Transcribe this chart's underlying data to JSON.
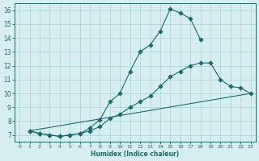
{
  "xlabel": "Humidex (Indice chaleur)",
  "ylabel": "",
  "bg_color": "#d6eef0",
  "line_color": "#1a6b6b",
  "grid_color": "#b0d8dc",
  "xlim": [
    -0.5,
    23.5
  ],
  "ylim": [
    6.5,
    16.5
  ],
  "xticks": [
    0,
    1,
    2,
    3,
    4,
    5,
    6,
    7,
    8,
    9,
    10,
    11,
    12,
    13,
    14,
    15,
    16,
    17,
    18,
    19,
    20,
    21,
    22,
    23
  ],
  "yticks": [
    7,
    8,
    9,
    10,
    11,
    12,
    13,
    14,
    15,
    16
  ],
  "series": [
    {
      "x": [
        1,
        2,
        3,
        4,
        5,
        6,
        7,
        8,
        9,
        10,
        11,
        12,
        13,
        14,
        15,
        16,
        17,
        18
      ],
      "y": [
        7.3,
        7.1,
        7.0,
        6.9,
        7.0,
        7.1,
        7.5,
        8.1,
        9.4,
        10.0,
        11.6,
        13.0,
        13.5,
        14.5,
        16.1,
        15.8,
        15.4,
        13.9
      ],
      "marker": "D",
      "markersize": 2.8
    },
    {
      "x": [
        1,
        2,
        3,
        4,
        5,
        6,
        7,
        8,
        9,
        10,
        11,
        12,
        13,
        14,
        15,
        16,
        17,
        18,
        19,
        20,
        21,
        22,
        23
      ],
      "y": [
        7.3,
        7.1,
        7.0,
        6.9,
        7.0,
        7.1,
        7.3,
        7.6,
        8.2,
        8.5,
        9.0,
        9.4,
        9.8,
        10.5,
        11.2,
        11.6,
        12.0,
        12.2,
        12.2,
        11.0,
        10.5,
        10.4,
        10.0
      ],
      "marker": "D",
      "markersize": 2.8
    },
    {
      "x": [
        1,
        23
      ],
      "y": [
        7.3,
        10.0
      ],
      "marker": null,
      "markersize": 0
    }
  ]
}
